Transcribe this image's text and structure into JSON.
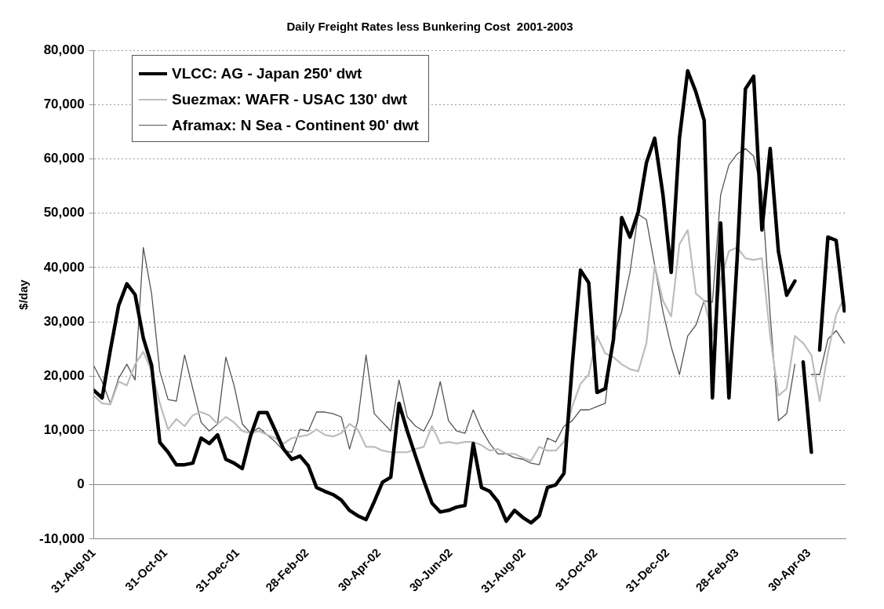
{
  "chart_data": {
    "type": "line",
    "title": "Daily Freight Rates less Bunkering Cost  2001-2003",
    "ylabel": "$/day",
    "x": [
      "2001-08-31",
      "2001-09-07",
      "2001-09-14",
      "2001-09-21",
      "2001-09-28",
      "2001-10-05",
      "2001-10-12",
      "2001-10-19",
      "2001-10-26",
      "2001-11-02",
      "2001-11-09",
      "2001-11-16",
      "2001-11-23",
      "2001-11-30",
      "2001-12-07",
      "2001-12-14",
      "2001-12-21",
      "2001-12-28",
      "2002-01-04",
      "2002-01-11",
      "2002-01-18",
      "2002-01-25",
      "2002-02-01",
      "2002-02-08",
      "2002-02-15",
      "2002-02-22",
      "2002-03-01",
      "2002-03-08",
      "2002-03-15",
      "2002-03-22",
      "2002-03-29",
      "2002-04-05",
      "2002-04-12",
      "2002-04-19",
      "2002-04-26",
      "2002-05-03",
      "2002-05-10",
      "2002-05-17",
      "2002-05-24",
      "2002-05-31",
      "2002-06-07",
      "2002-06-14",
      "2002-06-21",
      "2002-06-28",
      "2002-07-05",
      "2002-07-12",
      "2002-07-19",
      "2002-07-26",
      "2002-08-02",
      "2002-08-09",
      "2002-08-16",
      "2002-08-23",
      "2002-08-30",
      "2002-09-06",
      "2002-09-13",
      "2002-09-20",
      "2002-09-27",
      "2002-10-04",
      "2002-10-11",
      "2002-10-18",
      "2002-10-25",
      "2002-11-01",
      "2002-11-08",
      "2002-11-15",
      "2002-11-22",
      "2002-11-29",
      "2002-12-06",
      "2002-12-13",
      "2002-12-20",
      "2002-12-27",
      "2003-01-03",
      "2003-01-10",
      "2003-01-17",
      "2003-01-24",
      "2003-01-31",
      "2003-02-07",
      "2003-02-14",
      "2003-02-21",
      "2003-02-28",
      "2003-03-07",
      "2003-03-14",
      "2003-03-21",
      "2003-03-28",
      "2003-04-04",
      "2003-04-11",
      "2003-04-18",
      "2003-04-25",
      "2003-05-02",
      "2003-05-09",
      "2003-05-16",
      "2003-05-23",
      "2003-05-30"
    ],
    "series": [
      {
        "name": "VLCC: AG - Japan 250' dwt",
        "color": "#000000",
        "x": [
          "2001-08-31",
          "2001-09-07",
          "2001-09-14",
          "2001-09-21",
          "2001-09-28",
          "2001-10-05",
          "2001-10-12",
          "2001-10-19",
          "2001-10-26",
          "2001-11-02",
          "2001-11-09",
          "2001-11-16",
          "2001-11-23",
          "2001-11-30",
          "2001-12-07",
          "2001-12-14",
          "2001-12-21",
          "2001-12-28",
          "2002-01-04",
          "2002-01-11",
          "2002-01-18",
          "2002-01-25",
          "2002-02-01",
          "2002-02-08",
          "2002-02-15",
          "2002-02-22",
          "2002-03-01",
          "2002-03-08",
          "2002-03-15",
          "2002-03-22",
          "2002-03-29",
          "2002-04-05",
          "2002-04-12",
          "2002-04-19",
          "2002-04-26",
          "2002-05-03",
          "2002-05-10",
          "2002-05-17",
          "2002-05-24",
          "2002-05-31",
          "2002-06-07",
          "2002-06-14",
          "2002-06-21",
          "2002-06-28",
          "2002-07-05",
          "2002-07-12",
          "2002-07-19",
          "2002-07-26",
          "2002-08-02",
          "2002-08-09",
          "2002-08-16",
          "2002-08-23",
          "2002-08-30",
          "2002-09-06",
          "2002-09-13",
          "2002-09-20",
          "2002-09-27",
          "2002-10-04",
          "2002-10-11",
          "2002-10-18",
          "2002-10-25",
          "2002-11-01",
          "2002-11-08",
          "2002-11-15",
          "2002-11-22",
          "2002-11-29",
          "2002-12-06",
          "2002-12-13",
          "2002-12-20",
          "2002-12-27",
          "2003-01-03",
          "2003-01-10",
          "2003-01-17",
          "2003-01-24",
          "2003-01-31",
          "2003-02-07",
          "2003-02-14",
          "2003-02-21",
          "2003-02-28",
          "2003-03-07",
          "2003-03-14",
          "2003-03-21",
          "2003-03-28",
          "2003-04-04",
          "2003-04-11",
          "2003-04-18",
          "2003-04-21",
          "2003-04-25",
          "2003-05-02",
          "2003-05-05",
          "2003-05-09",
          "2003-05-16",
          "2003-05-23",
          "2003-05-30"
        ],
        "values": [
          17400,
          16000,
          24800,
          33000,
          37000,
          35000,
          27000,
          22000,
          7800,
          6000,
          3700,
          3700,
          4000,
          8600,
          7600,
          9200,
          4700,
          4000,
          3000,
          9000,
          13300,
          13300,
          10000,
          6600,
          4700,
          5300,
          3500,
          -500,
          -1200,
          -1800,
          -2800,
          -4700,
          -5700,
          -6400,
          -3100,
          500,
          1400,
          15000,
          9900,
          5300,
          800,
          -3400,
          -5000,
          -4700,
          -4100,
          -3800,
          7600,
          -500,
          -1200,
          -3100,
          -6700,
          -4700,
          -6000,
          -7000,
          -5700,
          -500,
          0,
          2100,
          22000,
          39500,
          37200,
          17000,
          17700,
          26800,
          49200,
          45600,
          50200,
          59300,
          63800,
          53400,
          39100,
          63800,
          76200,
          72300,
          67100,
          16000,
          48200,
          16000,
          41700,
          72900,
          75200,
          46900,
          61900,
          43000,
          34900,
          37500,
          null,
          22600,
          6000,
          null,
          24800,
          45600,
          45000,
          32000
        ]
      },
      {
        "name": "Suezmax: WAFR - USAC 130' dwt",
        "color": "#bdbdbd",
        "values": [
          16400,
          15000,
          14800,
          19000,
          18300,
          22200,
          24500,
          20900,
          15000,
          10200,
          12100,
          10800,
          12800,
          13400,
          12800,
          11200,
          12500,
          11500,
          9900,
          9500,
          9900,
          9200,
          8600,
          7600,
          8600,
          8900,
          9200,
          10200,
          9200,
          8900,
          9500,
          11200,
          10200,
          7000,
          7000,
          6300,
          6000,
          6000,
          6000,
          6600,
          7000,
          10800,
          7600,
          7900,
          7600,
          7900,
          7900,
          7300,
          6300,
          6600,
          5700,
          5700,
          5000,
          4400,
          7000,
          6300,
          6300,
          7900,
          14400,
          18600,
          20300,
          27400,
          24200,
          23500,
          22200,
          21300,
          20900,
          26100,
          40400,
          33900,
          31000,
          44300,
          46900,
          35200,
          33900,
          27400,
          37800,
          43000,
          43700,
          41700,
          41400,
          41700,
          27400,
          16400,
          17700,
          27400,
          26100,
          23900,
          15400,
          24200,
          31300,
          34600
        ]
      },
      {
        "name": "Aframax: N Sea - Continent 90' dwt",
        "color": "#555555",
        "values": [
          21900,
          19000,
          15000,
          19600,
          22200,
          19300,
          43700,
          35200,
          20900,
          15700,
          15400,
          23900,
          17700,
          11500,
          9900,
          11200,
          23500,
          18300,
          11200,
          9500,
          10500,
          9200,
          7900,
          6300,
          6000,
          10200,
          9900,
          13400,
          13400,
          13100,
          12500,
          6600,
          11800,
          23900,
          13100,
          11500,
          9900,
          19300,
          12500,
          10800,
          9900,
          12800,
          19000,
          11800,
          9900,
          9500,
          13800,
          10200,
          7600,
          5700,
          5700,
          5000,
          4700,
          4000,
          3700,
          8600,
          7900,
          10800,
          11800,
          13800,
          13800,
          14400,
          15000,
          27400,
          31900,
          39100,
          49800,
          48800,
          40400,
          31900,
          25400,
          20300,
          27400,
          29400,
          33900,
          33600,
          53400,
          58900,
          60900,
          61900,
          60500,
          54000,
          31300,
          11800,
          13100,
          22200,
          null,
          20300,
          20300,
          26800,
          28400,
          26100
        ]
      }
    ],
    "xlim": [
      "2001-08-31",
      "2003-05-31"
    ],
    "xticks": [
      {
        "value": "2001-08-31",
        "label": "31-Aug-01"
      },
      {
        "value": "2001-10-31",
        "label": "31-Oct-01"
      },
      {
        "value": "2001-12-31",
        "label": "31-Dec-01"
      },
      {
        "value": "2002-02-28",
        "label": "28-Feb-02"
      },
      {
        "value": "2002-04-30",
        "label": "30-Apr-02"
      },
      {
        "value": "2002-06-30",
        "label": "30-Jun-02"
      },
      {
        "value": "2002-08-31",
        "label": "31-Aug-02"
      },
      {
        "value": "2002-10-31",
        "label": "31-Oct-02"
      },
      {
        "value": "2002-12-31",
        "label": "31-Dec-02"
      },
      {
        "value": "2003-02-28",
        "label": "28-Feb-03"
      },
      {
        "value": "2003-04-30",
        "label": "30-Apr-03"
      }
    ],
    "ylim": [
      -10000,
      80000
    ],
    "yticks": [
      {
        "value": -10000,
        "label": "-10,000"
      },
      {
        "value": 0,
        "label": "0"
      },
      {
        "value": 10000,
        "label": "10,000"
      },
      {
        "value": 20000,
        "label": "20,000"
      },
      {
        "value": 30000,
        "label": "30,000"
      },
      {
        "value": 40000,
        "label": "40,000"
      },
      {
        "value": 50000,
        "label": "50,000"
      },
      {
        "value": 60000,
        "label": "60,000"
      },
      {
        "value": 70000,
        "label": "70,000"
      },
      {
        "value": 80000,
        "label": "80,000"
      }
    ],
    "grid": "y",
    "legend": "top left"
  }
}
